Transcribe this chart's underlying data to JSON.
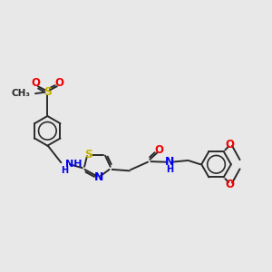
{
  "bg_color": "#e8e8e8",
  "bond_color": "#2a2a2a",
  "s_color": "#c8b400",
  "n_color": "#0000ee",
  "o_color": "#ee0000",
  "lw": 1.4,
  "lw_ring": 1.3,
  "fs": 8.5,
  "fs_small": 7.5,
  "xlim": [
    0,
    10.5
  ],
  "ylim": [
    -1.5,
    5.5
  ]
}
